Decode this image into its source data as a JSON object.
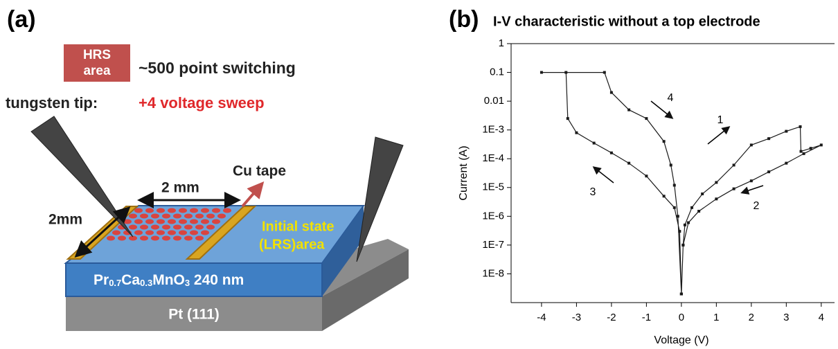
{
  "panel_a": {
    "label": "(a)",
    "hrs_box": [
      "HRS",
      "area"
    ],
    "switching": "~500 point switching",
    "tip_label": "tungsten tip:",
    "sweep_label": "+4 voltage sweep",
    "cu_tape": "Cu tape",
    "width_label": "2 mm",
    "length_label": "2mm",
    "initial_state": [
      "Initial state",
      "(LRS)area"
    ],
    "film": [
      "Pr",
      "0.7",
      "Ca",
      "0.3",
      "MnO",
      "3",
      " 240 nm"
    ],
    "substrate": "Pt (111)"
  },
  "chart_data": {
    "type": "line",
    "panel_label": "(b)",
    "title": "I-V characteristic without a top electrode",
    "x_label": "Voltage (V)",
    "y_label": "Current (A)",
    "yscale": "log",
    "xlim": [
      -4.87,
      4.38
    ],
    "ylim": [
      1e-09,
      1
    ],
    "xticks": [
      -4,
      -3,
      -2,
      -1,
      0,
      1,
      2,
      3,
      4
    ],
    "yticks": [
      1,
      0.1,
      0.01,
      {
        "value": 0.001,
        "label": "1E-3"
      },
      {
        "value": 0.0001,
        "label": "1E-4"
      },
      {
        "value": 1e-05,
        "label": "1E-5"
      },
      {
        "value": 1e-06,
        "label": "1E-6"
      },
      {
        "value": 1e-07,
        "label": "1E-7"
      },
      {
        "value": 1e-08,
        "label": "1E-8"
      }
    ],
    "annotations": [
      "1",
      "2",
      "3",
      "4"
    ],
    "series": [
      {
        "color": "#1a1a1a",
        "x": [
          0,
          0.05,
          0.1,
          0.3,
          0.6,
          1,
          1.5,
          2,
          2.5,
          3,
          3.4,
          3.42,
          3.7,
          4,
          3.5,
          3,
          2.5,
          2,
          1.5,
          1,
          0.5,
          0.2,
          0.05,
          0,
          -0.05,
          -0.2,
          -0.5,
          -1,
          -1.5,
          -2,
          -2.5,
          -3,
          -3.25,
          -3.3,
          -4,
          -2.2,
          -2,
          -1.5,
          -1,
          -0.5,
          -0.3,
          -0.2,
          -0.1,
          0
        ],
        "values": [
          2e-09,
          1e-07,
          5e-07,
          2e-06,
          6e-06,
          1.5e-05,
          6e-05,
          0.0003,
          0.0005,
          0.0009,
          0.0013,
          0.00018,
          0.00023,
          0.0003,
          0.00015,
          7e-05,
          3.5e-05,
          1.7e-05,
          9e-06,
          4e-06,
          1.5e-06,
          6e-07,
          1e-07,
          2e-09,
          3e-07,
          2e-06,
          5e-06,
          2.5e-05,
          7e-05,
          0.00016,
          0.00035,
          0.0008,
          0.0025,
          0.1,
          0.1,
          0.1,
          0.02,
          0.005,
          0.0025,
          0.0004,
          6e-05,
          1.2e-05,
          1e-06,
          2e-09
        ]
      }
    ]
  }
}
